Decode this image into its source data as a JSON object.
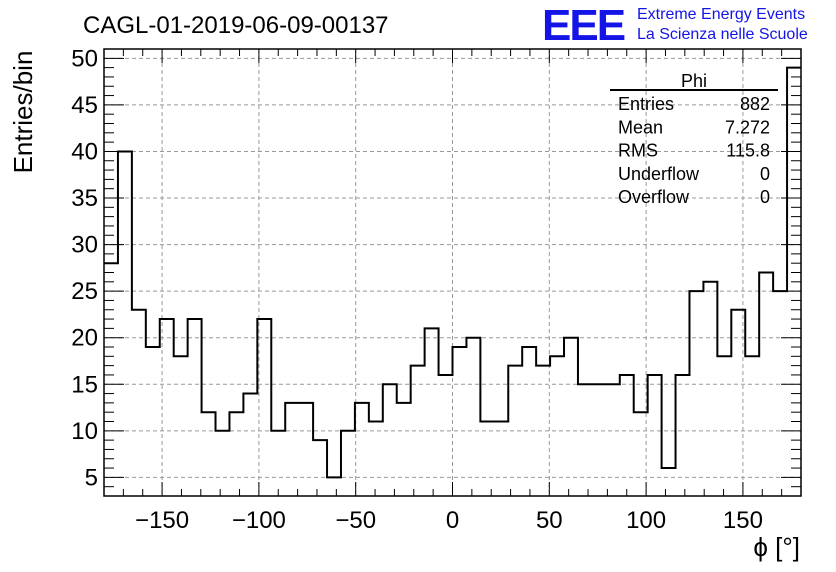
{
  "chart_data": {
    "type": "histogram",
    "title": "CAGL-01-2019-06-09-00137",
    "xlabel": "ϕ [°]",
    "ylabel": "Entries/bin",
    "xlim": [
      -180,
      180
    ],
    "ylim": [
      3,
      51
    ],
    "x_ticks": [
      -150,
      -100,
      -50,
      0,
      50,
      100,
      150
    ],
    "x_tick_labels": [
      "−150",
      "−100",
      "−50",
      "0",
      "50",
      "100",
      "150"
    ],
    "y_ticks": [
      5,
      10,
      15,
      20,
      25,
      30,
      35,
      40,
      45,
      50
    ],
    "y_tick_labels": [
      "5",
      "10",
      "15",
      "20",
      "25",
      "30",
      "35",
      "40",
      "45",
      "50"
    ],
    "grid": true,
    "bin_width": 7.2,
    "bin_edges_start": -180,
    "values": [
      28,
      40,
      23,
      19,
      22,
      18,
      22,
      12,
      10,
      12,
      14,
      22,
      10,
      13,
      13,
      9,
      5,
      10,
      13,
      11,
      15,
      13,
      17,
      21,
      16,
      19,
      20,
      11,
      11,
      17,
      19,
      17,
      18,
      20,
      15,
      15,
      15,
      16,
      12,
      16,
      6,
      16,
      25,
      26,
      18,
      23,
      18,
      27,
      25,
      49
    ],
    "stats": {
      "title": "Phi",
      "rows": [
        {
          "label": "Entries",
          "value": "882"
        },
        {
          "label": "Mean",
          "value": "7.272"
        },
        {
          "label": "RMS",
          "value": "115.8"
        },
        {
          "label": "Underflow",
          "value": "0"
        },
        {
          "label": "Overflow",
          "value": "0"
        }
      ]
    },
    "logo": {
      "mark": "EEE",
      "line1": "Extreme Energy Events",
      "line2": "La Scienza nelle Scuole",
      "color": "#1414e6"
    }
  }
}
